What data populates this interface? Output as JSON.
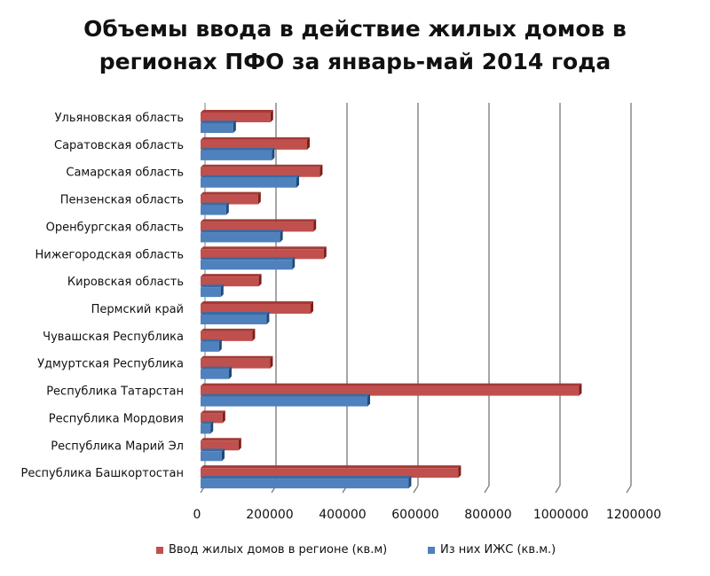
{
  "chart_data": {
    "type": "bar",
    "orientation": "horizontal",
    "style": "3d-clustered",
    "title": "Объемы ввода в действие жилых домов в регионах ПФО за январь-май 2014 года",
    "title_lines": [
      "Объемы ввода в действие жилых домов в",
      "регионах ПФО за январь-май 2014 года"
    ],
    "categories": [
      "Ульяновская область",
      "Саратовская область",
      "Самарская область",
      "Пензенская область",
      "Оренбургская область",
      "Нижегородская область",
      "Кировская область",
      "Пермский край",
      "Чувашская Республика",
      "Удмуртская Республика",
      "Республика Татарстан",
      "Республика Мордовия",
      "Республика  Марий Эл",
      "Республика Башкортостан"
    ],
    "series": [
      {
        "name": "Ввод жилых домов в регионе (кв.м)",
        "color": "#c0504d",
        "values": [
          197000,
          300000,
          336000,
          162000,
          318000,
          347000,
          164000,
          310000,
          146000,
          196000,
          1066000,
          62000,
          107000,
          726000
        ]
      },
      {
        "name": "Из них ИЖС (кв.м.)",
        "color": "#4f81bd",
        "values": [
          92000,
          201000,
          270000,
          72000,
          224000,
          258000,
          57000,
          186000,
          52000,
          80000,
          470000,
          28000,
          60000,
          586000
        ]
      }
    ],
    "xlim": [
      0,
      1200000
    ],
    "xticks": [
      "0",
      "200000",
      "400000",
      "600000",
      "800000",
      "1000000",
      "1200000"
    ],
    "grid": true,
    "legend_position": "bottom"
  }
}
